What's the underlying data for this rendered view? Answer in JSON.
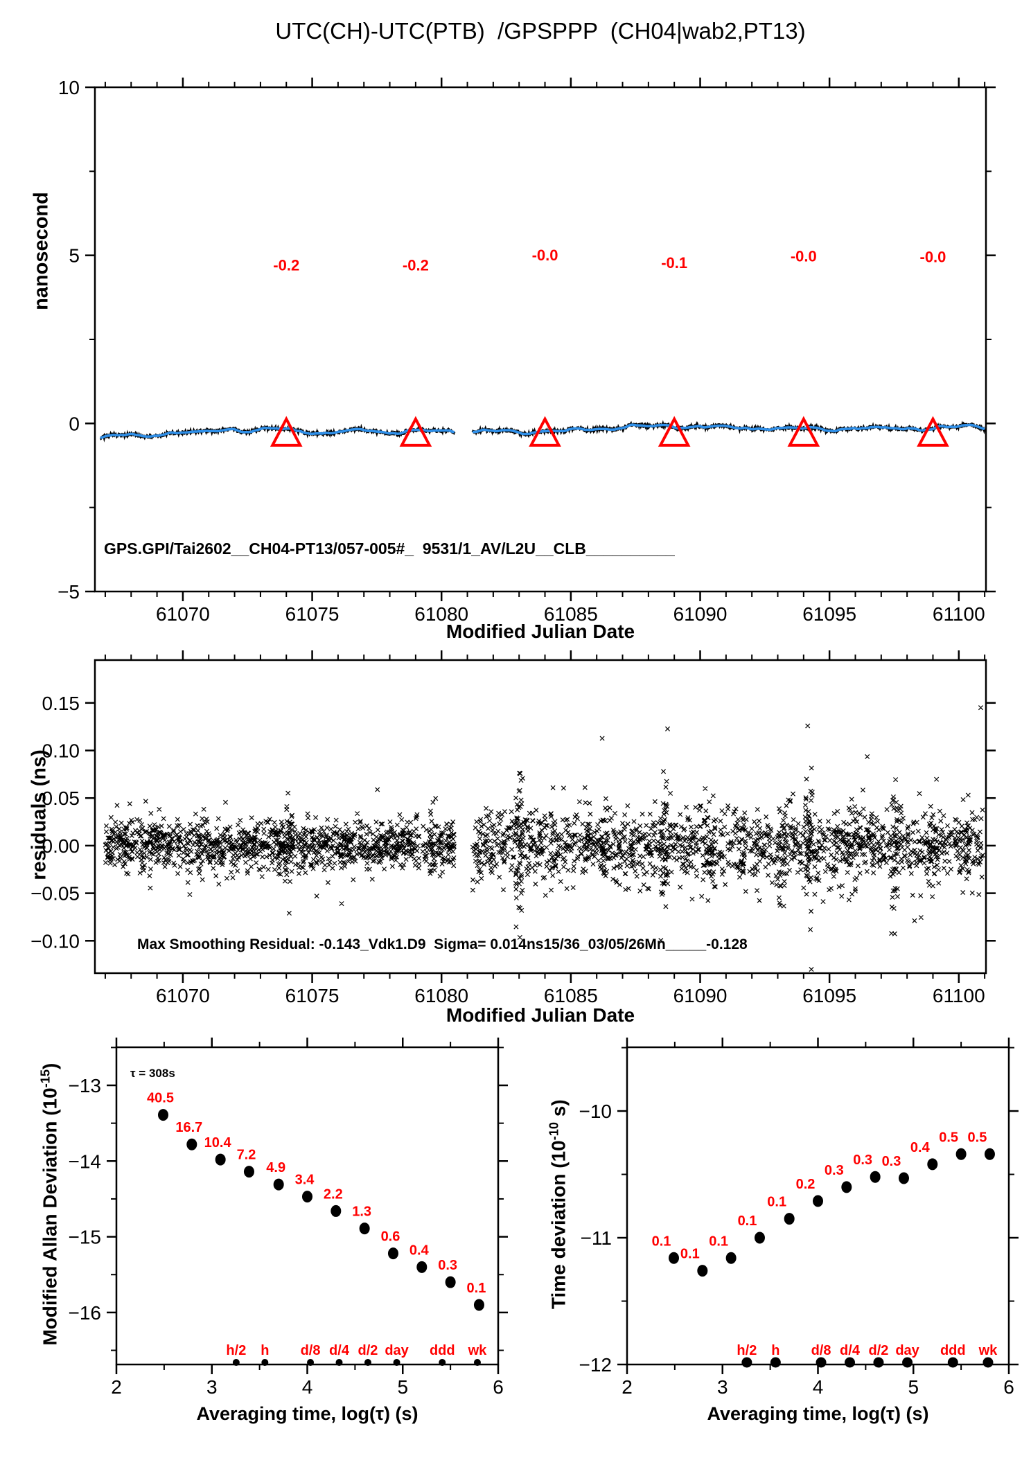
{
  "title": "UTC(CH)-UTC(PTB)  /GPSPPP  (CH04|wab2,PT13)",
  "colors": {
    "red": "#ff0000",
    "blue": "#2f8fe8",
    "black": "#000000"
  },
  "chart_data": [
    {
      "id": "utc-difference",
      "type": "line",
      "xlabel": "Modified Julian Date",
      "ylabel": "nanosecond",
      "xlim": [
        61066.6,
        61101.05
      ],
      "ylim": [
        -5,
        10
      ],
      "xticks_major": [
        61070,
        61075,
        61080,
        61085,
        61090,
        61095,
        61100
      ],
      "xtick_labels": [
        "61070",
        "61075",
        "61080",
        "61085",
        "61090",
        "61095",
        "61100"
      ],
      "xtick_minor_step": 1,
      "yticks_major": [
        10,
        5,
        0,
        -5
      ],
      "ytick_labels": [
        "10",
        "5",
        "0",
        "−5"
      ],
      "yticks_minor": [
        7.5,
        2.5,
        -2.5
      ],
      "trace": {
        "series_color_note": "blue line over black noisy band near 0 ns",
        "segments": [
          {
            "x0": 61066.8,
            "x1": 61080.5,
            "mean": -0.22,
            "start": -0.44
          },
          {
            "x0": 61081.2,
            "x1": 61101.0,
            "mean": -0.12,
            "start": -0.26
          }
        ]
      },
      "calibration_markers": {
        "symbol": "open-triangle",
        "mjd": [
          61074,
          61079,
          61084,
          61089,
          61094,
          61099
        ],
        "value_ns": -0.28
      },
      "point_labels": [
        {
          "text": "-0.2",
          "mjd": 61074,
          "ns": 4.55
        },
        {
          "text": "-0.2",
          "mjd": 61079,
          "ns": 4.55
        },
        {
          "text": "-0.0",
          "mjd": 61084,
          "ns": 4.85
        },
        {
          "text": "-0.1",
          "mjd": 61089,
          "ns": 4.62
        },
        {
          "text": "-0.0",
          "mjd": 61094,
          "ns": 4.82
        },
        {
          "text": "-0.0",
          "mjd": 61099,
          "ns": 4.8
        }
      ],
      "footer": "GPS.GPI/Tai2602__CH04-PT13/057-005#_  9531/1_AV/L2U__CLB__________"
    },
    {
      "id": "residuals",
      "type": "scatter",
      "marker": "x",
      "xlabel": "Modified Julian Date",
      "ylabel": "residuals (ns)",
      "xlim": [
        61066.6,
        61101.05
      ],
      "ylim": [
        -0.134,
        0.195
      ],
      "xticks_major": [
        61070,
        61075,
        61080,
        61085,
        61090,
        61095,
        61100
      ],
      "xtick_labels": [
        "61070",
        "61075",
        "61080",
        "61085",
        "61090",
        "61095",
        "61100"
      ],
      "xtick_minor_step": 1,
      "yticks_major": [
        0.15,
        0.1,
        0.05,
        0.0,
        -0.05,
        -0.1
      ],
      "ytick_labels": [
        "0.15",
        "0.10",
        "0.05",
        "0.00",
        "−0.05",
        "−0.10"
      ],
      "scatter": {
        "seed": 20260305,
        "segments": [
          {
            "x0": 61067.0,
            "x1": 61080.5,
            "n": 1250,
            "sd": 0.013
          },
          {
            "x0": 61081.2,
            "x1": 61100.95,
            "n": 1500,
            "sd": 0.019
          }
        ],
        "spikes": [
          {
            "mjd": 61074.1,
            "n": 25,
            "sd": 0.03
          },
          {
            "mjd": 61083.0,
            "n": 45,
            "sd": 0.042
          },
          {
            "mjd": 61086.3,
            "n": 25,
            "sd": 0.034
          },
          {
            "mjd": 61088.6,
            "n": 40,
            "sd": 0.042
          },
          {
            "mjd": 61090.4,
            "n": 20,
            "sd": 0.032
          },
          {
            "mjd": 61093.2,
            "n": 25,
            "sd": 0.04
          },
          {
            "mjd": 61094.2,
            "n": 50,
            "sd": 0.044
          },
          {
            "mjd": 61095.9,
            "n": 20,
            "sd": 0.032
          },
          {
            "mjd": 61097.5,
            "n": 30,
            "sd": 0.038
          },
          {
            "mjd": 61099.0,
            "n": 15,
            "sd": 0.028
          },
          {
            "mjd": 61100.3,
            "n": 20,
            "sd": 0.03
          }
        ],
        "outlier": {
          "mjd": 61100.85,
          "ns": 0.145
        }
      },
      "annotation": "Max Smoothing Residual: -0.143_Vdk1.D9  Sigma= 0.014ns15/36_03/05/26Mn_____-0.128"
    },
    {
      "id": "modified-allan-deviation",
      "type": "scatter",
      "xlabel": "Averaging time, log(τ) (s)",
      "ylabel_pre": "Modified Allan Deviation (10",
      "ylabel_sup": "-15",
      "ylabel_post": ")",
      "tau_annotation": "τ = 308s",
      "xlim": [
        2,
        6
      ],
      "ylim": [
        -16.687,
        -12.497
      ],
      "xticks_major": [
        2,
        3,
        4,
        5,
        6
      ],
      "xtick_labels": [
        "2",
        "3",
        "4",
        "5",
        "6"
      ],
      "xticks_minor": [
        2.5,
        3.5,
        4.5,
        5.5
      ],
      "yticks_major": [
        -13,
        -14,
        -15,
        -16
      ],
      "ytick_labels": [
        "−13",
        "−14",
        "−15",
        "−16"
      ],
      "yticks_minor": [
        -12.5,
        -13.5,
        -14.5,
        -15.5,
        -16.5
      ],
      "points": [
        {
          "log_tau": 2.49,
          "log_dev": -13.39,
          "label": "40.5"
        },
        {
          "log_tau": 2.79,
          "log_dev": -13.78,
          "label": "16.7"
        },
        {
          "log_tau": 3.09,
          "log_dev": -13.98,
          "label": "10.4"
        },
        {
          "log_tau": 3.39,
          "log_dev": -14.14,
          "label": "7.2"
        },
        {
          "log_tau": 3.7,
          "log_dev": -14.31,
          "label": "4.9"
        },
        {
          "log_tau": 4.0,
          "log_dev": -14.47,
          "label": "3.4"
        },
        {
          "log_tau": 4.3,
          "log_dev": -14.66,
          "label": "2.2"
        },
        {
          "log_tau": 4.6,
          "log_dev": -14.89,
          "label": "1.3"
        },
        {
          "log_tau": 4.9,
          "log_dev": -15.22,
          "label": "0.6"
        },
        {
          "log_tau": 5.2,
          "log_dev": -15.4,
          "label": "0.4"
        },
        {
          "log_tau": 5.5,
          "log_dev": -15.6,
          "label": "0.3"
        },
        {
          "log_tau": 5.8,
          "log_dev": -15.9,
          "label": "0.1"
        }
      ],
      "time_ticks": [
        {
          "label": "h/2",
          "log_tau": 3.255
        },
        {
          "label": "h",
          "log_tau": 3.556
        },
        {
          "label": "d/8",
          "log_tau": 4.033
        },
        {
          "label": "d/4",
          "log_tau": 4.334
        },
        {
          "label": "d/2",
          "log_tau": 4.635
        },
        {
          "label": "day",
          "log_tau": 4.937
        },
        {
          "label": "ddd",
          "log_tau": 5.414
        },
        {
          "label": "wk",
          "log_tau": 5.782
        }
      ]
    },
    {
      "id": "time-deviation",
      "type": "scatter",
      "xlabel": "Averaging time, log(τ) (s)",
      "ylabel_pre": "Time deviation (10",
      "ylabel_sup": "-10",
      "ylabel_post": " s)",
      "xlim": [
        2,
        6
      ],
      "ylim": [
        -12.0,
        -9.497
      ],
      "xticks_major": [
        2,
        3,
        4,
        5,
        6
      ],
      "xtick_labels": [
        "2",
        "3",
        "4",
        "5",
        "6"
      ],
      "xticks_minor": [
        2.5,
        3.5,
        4.5,
        5.5
      ],
      "yticks_major": [
        -10,
        -11,
        -12
      ],
      "ytick_labels": [
        "−10",
        "−11",
        "−12"
      ],
      "yticks_minor": [
        -9.5,
        -10.5,
        -11.5
      ],
      "points": [
        {
          "log_tau": 2.49,
          "log_dev": -11.16,
          "label": "0.1"
        },
        {
          "log_tau": 2.79,
          "log_dev": -11.26,
          "label": "0.1"
        },
        {
          "log_tau": 3.09,
          "log_dev": -11.16,
          "label": "0.1"
        },
        {
          "log_tau": 3.39,
          "log_dev": -11.0,
          "label": "0.1"
        },
        {
          "log_tau": 3.7,
          "log_dev": -10.85,
          "label": "0.1"
        },
        {
          "log_tau": 4.0,
          "log_dev": -10.71,
          "label": "0.2"
        },
        {
          "log_tau": 4.3,
          "log_dev": -10.6,
          "label": "0.3"
        },
        {
          "log_tau": 4.6,
          "log_dev": -10.52,
          "label": "0.3"
        },
        {
          "log_tau": 4.9,
          "log_dev": -10.53,
          "label": "0.3"
        },
        {
          "log_tau": 5.2,
          "log_dev": -10.42,
          "label": "0.4"
        },
        {
          "log_tau": 5.5,
          "log_dev": -10.34,
          "label": "0.5"
        },
        {
          "log_tau": 5.8,
          "log_dev": -10.34,
          "label": "0.5"
        }
      ],
      "time_ticks": [
        {
          "label": "h/2",
          "log_tau": 3.255
        },
        {
          "label": "h",
          "log_tau": 3.556
        },
        {
          "label": "d/8",
          "log_tau": 4.033
        },
        {
          "label": "d/4",
          "log_tau": 4.334
        },
        {
          "label": "d/2",
          "log_tau": 4.635
        },
        {
          "label": "day",
          "log_tau": 4.937
        },
        {
          "label": "ddd",
          "log_tau": 5.414
        },
        {
          "label": "wk",
          "log_tau": 5.782
        }
      ]
    }
  ]
}
